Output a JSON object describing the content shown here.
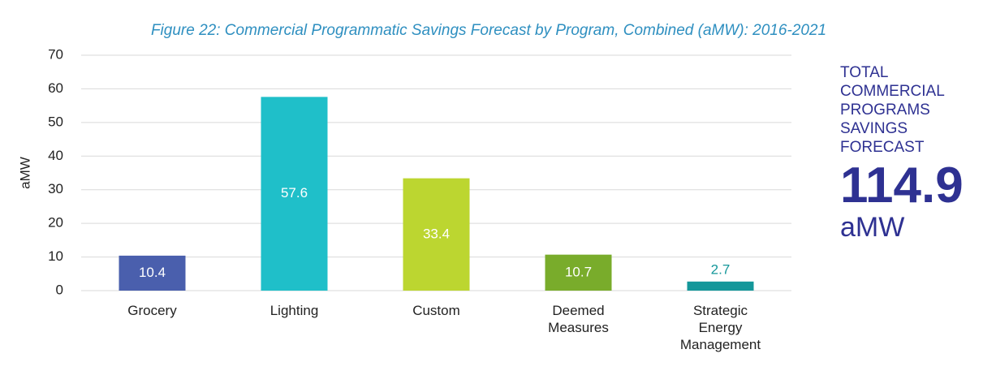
{
  "chart_data": {
    "type": "bar",
    "title": "Figure 22: Commercial Programmatic Savings Forecast by Program, Combined (aMW): 2016-2021",
    "ylabel": "aMW",
    "categories": [
      "Grocery",
      "Lighting",
      "Custom",
      "Deemed Measures",
      "Strategic Energy Management"
    ],
    "values": [
      10.4,
      57.6,
      33.4,
      10.7,
      2.7
    ],
    "colors": [
      "#4a5fad",
      "#1fbfc9",
      "#bcd630",
      "#79ac2b",
      "#14979a"
    ],
    "ylim": [
      0,
      70
    ],
    "yticks": [
      0,
      10,
      20,
      30,
      40,
      50,
      60,
      70
    ],
    "grid": true,
    "total_label": "TOTAL COMMERCIAL PROGRAMS SAVINGS FORECAST",
    "total_value": "114.9",
    "total_unit": "aMW"
  }
}
